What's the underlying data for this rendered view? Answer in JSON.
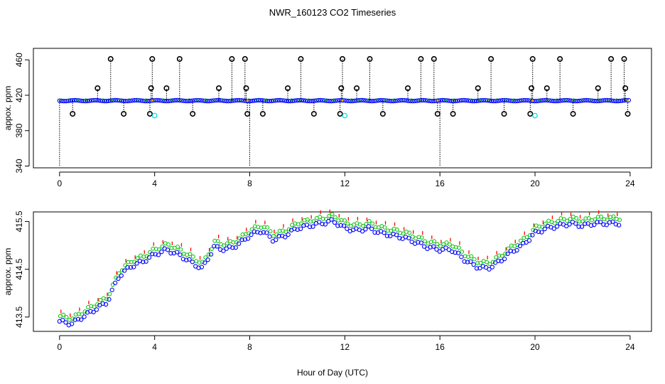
{
  "title": "NWR_160123  CO2 Timeseries",
  "shared_xlabel": "Hour of Day (UTC)",
  "colors": {
    "blue": "#0000ff",
    "green": "#00c000",
    "red": "#ff0000",
    "cyan": "#00e0e0",
    "black": "#000000",
    "orange": "#ffa500"
  },
  "chart_data": [
    {
      "type": "scatter",
      "panel": "top",
      "ylabel": "appox. ppm",
      "xlim": [
        -1.1,
        24.9
      ],
      "ylim": [
        338,
        473
      ],
      "xticks": [
        "0",
        "4",
        "8",
        "12",
        "16",
        "20",
        "24"
      ],
      "yticks": [
        "340",
        "380",
        "420",
        "460"
      ],
      "baseline_ppm": 413.9,
      "spikes": [
        {
          "x": 0.0,
          "y": 340
        },
        {
          "x": 0.55,
          "y": 399
        },
        {
          "x": 1.6,
          "y": 428
        },
        {
          "x": 2.15,
          "y": 461
        },
        {
          "x": 2.7,
          "y": 399
        },
        {
          "x": 3.8,
          "y": 399
        },
        {
          "x": 3.85,
          "y": 428
        },
        {
          "x": 3.9,
          "y": 461
        },
        {
          "x": 4.5,
          "y": 428
        },
        {
          "x": 5.05,
          "y": 461
        },
        {
          "x": 5.6,
          "y": 399
        },
        {
          "x": 6.7,
          "y": 428
        },
        {
          "x": 7.25,
          "y": 461
        },
        {
          "x": 7.8,
          "y": 461
        },
        {
          "x": 7.85,
          "y": 428
        },
        {
          "x": 7.9,
          "y": 399
        },
        {
          "x": 8.0,
          "y": 340
        },
        {
          "x": 8.55,
          "y": 399
        },
        {
          "x": 9.6,
          "y": 428
        },
        {
          "x": 10.15,
          "y": 461
        },
        {
          "x": 10.7,
          "y": 399
        },
        {
          "x": 11.8,
          "y": 399
        },
        {
          "x": 11.85,
          "y": 428
        },
        {
          "x": 11.9,
          "y": 461
        },
        {
          "x": 12.5,
          "y": 428
        },
        {
          "x": 13.05,
          "y": 461
        },
        {
          "x": 13.6,
          "y": 399
        },
        {
          "x": 14.65,
          "y": 428
        },
        {
          "x": 15.2,
          "y": 461
        },
        {
          "x": 15.75,
          "y": 461
        },
        {
          "x": 15.9,
          "y": 399
        },
        {
          "x": 16.0,
          "y": 340
        },
        {
          "x": 16.55,
          "y": 399
        },
        {
          "x": 17.6,
          "y": 428
        },
        {
          "x": 18.15,
          "y": 461
        },
        {
          "x": 18.7,
          "y": 399
        },
        {
          "x": 19.8,
          "y": 399
        },
        {
          "x": 19.85,
          "y": 428
        },
        {
          "x": 19.9,
          "y": 461
        },
        {
          "x": 20.5,
          "y": 428
        },
        {
          "x": 21.05,
          "y": 461
        },
        {
          "x": 21.6,
          "y": 399
        },
        {
          "x": 22.65,
          "y": 428
        },
        {
          "x": 23.2,
          "y": 461
        },
        {
          "x": 23.75,
          "y": 461
        },
        {
          "x": 23.8,
          "y": 428
        },
        {
          "x": 23.9,
          "y": 399
        }
      ],
      "cyan_points": [
        {
          "x": 4.0,
          "y": 397
        },
        {
          "x": 12.0,
          "y": 397
        },
        {
          "x": 20.0,
          "y": 397
        }
      ]
    },
    {
      "type": "scatter",
      "panel": "bottom",
      "ylabel": "approx. ppm",
      "xlim": [
        -1.1,
        24.9
      ],
      "ylim": [
        413.2,
        415.7
      ],
      "xticks": [
        "0",
        "4",
        "8",
        "12",
        "16",
        "20",
        "24"
      ],
      "yticks": [
        "413.5",
        "414.5",
        "415.5"
      ],
      "series": [
        {
          "name": "blue circles",
          "color": "blue",
          "marker": "circle"
        },
        {
          "name": "green circles",
          "color": "green",
          "marker": "circle"
        },
        {
          "name": "red ticks",
          "color": "red",
          "marker": "tick"
        }
      ],
      "x": [
        0,
        0.5,
        1,
        1.5,
        2,
        2.5,
        3,
        3.5,
        4,
        4.5,
        5,
        5.5,
        6,
        6.5,
        7,
        7.5,
        8,
        8.5,
        9,
        9.5,
        10,
        10.5,
        11,
        11.5,
        12,
        12.5,
        13,
        13.5,
        14,
        14.5,
        15,
        15.5,
        16,
        16.5,
        17,
        17.5,
        18,
        18.5,
        19,
        19.5,
        20,
        20.5,
        21,
        21.5,
        22,
        22.5,
        23,
        23.5
      ],
      "values": [
        413.5,
        413.45,
        413.6,
        413.75,
        413.9,
        414.45,
        414.65,
        414.75,
        414.9,
        415.0,
        414.9,
        414.75,
        414.6,
        415.05,
        415.0,
        415.1,
        415.3,
        415.4,
        415.2,
        415.3,
        415.45,
        415.5,
        415.55,
        415.6,
        415.45,
        415.4,
        415.45,
        415.35,
        415.3,
        415.25,
        415.15,
        415.05,
        415.0,
        415.0,
        414.8,
        414.65,
        414.6,
        414.75,
        414.95,
        415.1,
        415.35,
        415.45,
        415.5,
        415.55,
        415.5,
        415.55,
        415.55,
        415.55
      ]
    }
  ]
}
